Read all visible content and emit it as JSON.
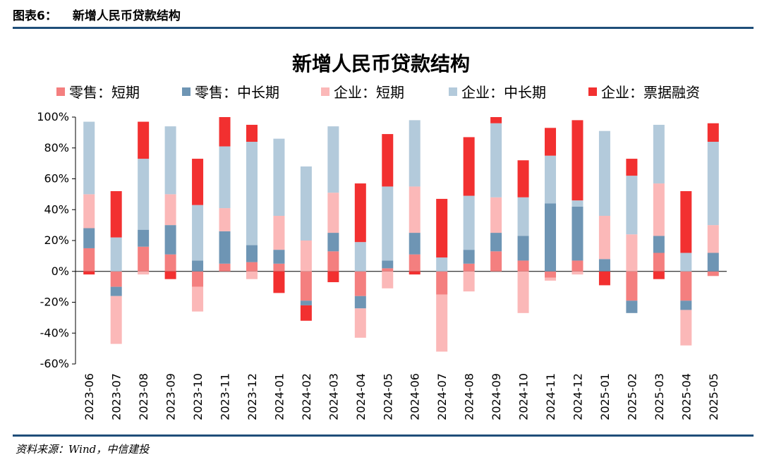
{
  "header": {
    "figure_no": "图表6：",
    "figure_title": "新增人民币贷款结构"
  },
  "source": "资料来源：Wind，中信建投",
  "colors": {
    "retail_short": "#f47f7f",
    "retail_mid_long": "#6e95b4",
    "corp_short": "#fbb8b8",
    "corp_mid_long": "#b3cadb",
    "corp_bill": "#f23030",
    "frame": "#1f4e79"
  },
  "chart_data": {
    "type": "bar",
    "stacked": true,
    "title": "新增人民币贷款结构",
    "ylim": [
      -60,
      100
    ],
    "yticks": [
      100,
      80,
      60,
      40,
      20,
      0,
      -20,
      -40,
      -60
    ],
    "ytick_labels": [
      "100%",
      "80%",
      "60%",
      "40%",
      "20%",
      "0%",
      "-20%",
      "-40%",
      "-60%"
    ],
    "legend_position": "top",
    "categories": [
      "2023-06",
      "2023-07",
      "2023-08",
      "2023-09",
      "2023-10",
      "2023-11",
      "2023-12",
      "2024-01",
      "2024-02",
      "2024-03",
      "2024-04",
      "2024-05",
      "2024-06",
      "2024-07",
      "2024-08",
      "2024-09",
      "2024-10",
      "2024-11",
      "2024-12",
      "2025-01",
      "2025-02",
      "2025-03",
      "2025-04",
      "2025-05"
    ],
    "series": [
      {
        "name": "零售：短期",
        "color_key": "retail_short",
        "values": [
          15,
          -10,
          16,
          11,
          -10,
          5,
          6,
          5,
          -19,
          13,
          -16,
          2,
          11,
          -15,
          5,
          13,
          7,
          -4,
          7,
          0,
          -19,
          12,
          -19,
          -3
        ]
      },
      {
        "name": "零售：中长期",
        "color_key": "retail_mid_long",
        "values": [
          13,
          -6,
          11,
          19,
          7,
          21,
          11,
          9,
          -3,
          12,
          -8,
          5,
          14,
          0,
          9,
          12,
          16,
          44,
          35,
          8,
          -8,
          11,
          -6,
          12
        ]
      },
      {
        "name": "企业：短期",
        "color_key": "corp_short",
        "values": [
          22,
          -31,
          -2,
          20,
          -16,
          15,
          -5,
          22,
          20,
          26,
          -19,
          -11,
          30,
          -37,
          -13,
          23,
          -27,
          -2,
          -2,
          28,
          24,
          34,
          -23,
          18
        ]
      },
      {
        "name": "企业：中长期",
        "color_key": "corp_mid_long",
        "values": [
          47,
          22,
          46,
          44,
          36,
          40,
          67,
          50,
          48,
          43,
          19,
          48,
          43,
          9,
          35,
          48,
          25,
          31,
          4,
          55,
          38,
          38,
          12,
          54
        ]
      },
      {
        "name": "企业：票据融资",
        "color_key": "corp_bill",
        "values": [
          -2,
          30,
          24,
          -5,
          30,
          19,
          11,
          -14,
          -10,
          -7,
          38,
          34,
          -2,
          38,
          38,
          4,
          24,
          18,
          52,
          -9,
          11,
          -5,
          40,
          12
        ]
      }
    ]
  }
}
